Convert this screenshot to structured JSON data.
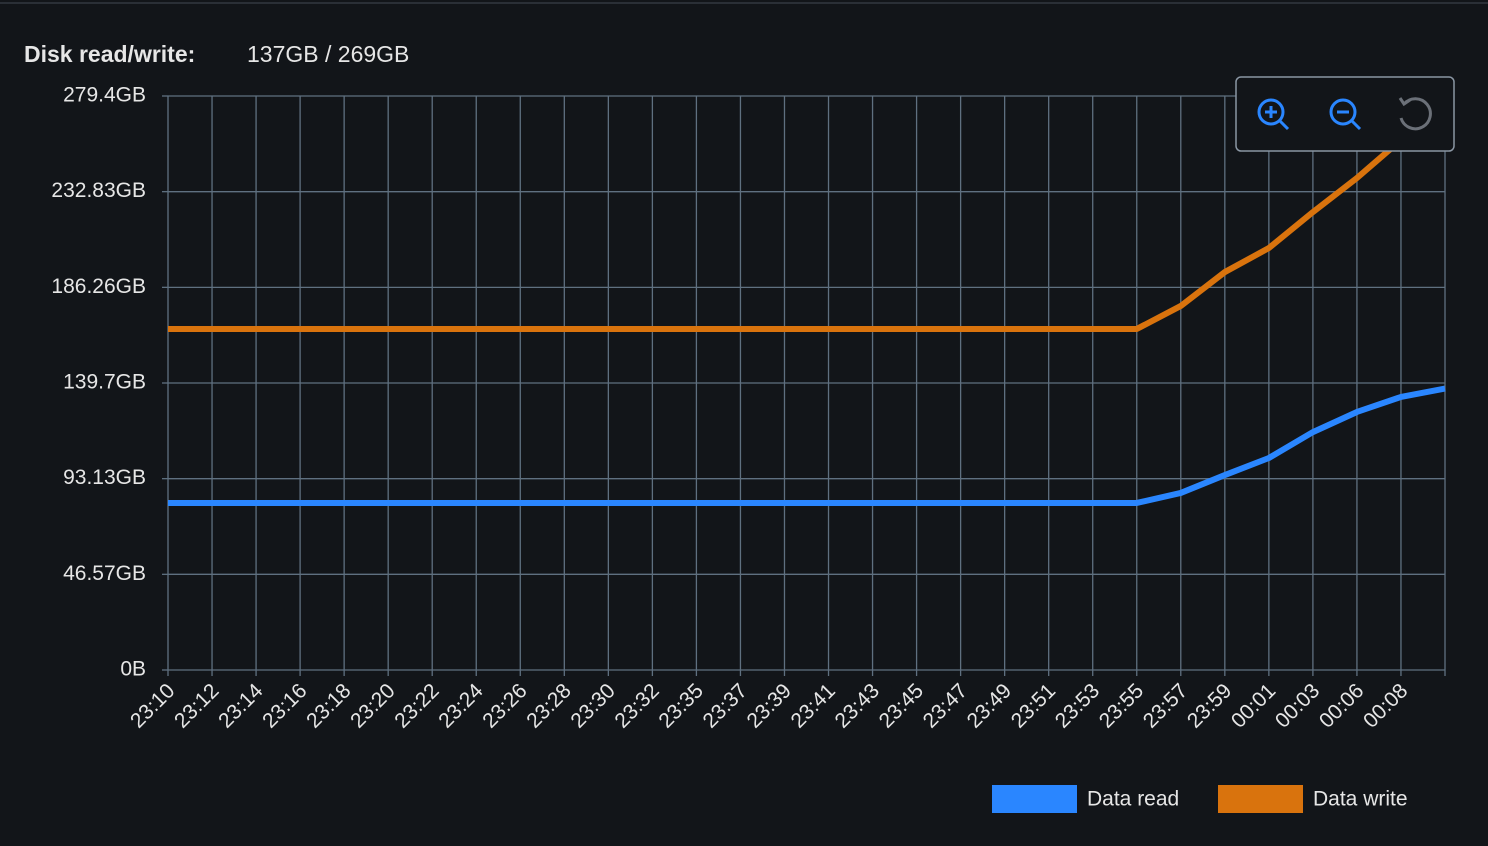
{
  "chart_data": {
    "type": "line",
    "title": "Disk read/write:",
    "subtitle": "137GB / 269GB",
    "categories": [
      "23:10",
      "23:12",
      "23:14",
      "23:16",
      "23:18",
      "23:20",
      "23:22",
      "23:24",
      "23:26",
      "23:28",
      "23:30",
      "23:32",
      "23:35",
      "23:37",
      "23:39",
      "23:41",
      "23:43",
      "23:45",
      "23:47",
      "23:49",
      "23:51",
      "23:53",
      "23:55",
      "23:57",
      "23:59",
      "00:01",
      "00:03",
      "00:06",
      "00:08",
      null
    ],
    "series": [
      {
        "name": "Data read",
        "color": "#2a86ff",
        "values": [
          81.3,
          81.3,
          81.3,
          81.3,
          81.3,
          81.3,
          81.3,
          81.3,
          81.3,
          81.3,
          81.3,
          81.3,
          81.3,
          81.3,
          81.3,
          81.3,
          81.3,
          81.3,
          81.3,
          81.3,
          81.3,
          81.3,
          81.3,
          86.2,
          94.9,
          103.2,
          115.8,
          125.6,
          132.9,
          137
        ]
      },
      {
        "name": "Data write",
        "color": "#d9730d",
        "values": [
          166,
          166,
          166,
          166,
          166,
          166,
          166,
          166,
          166,
          166,
          166,
          166,
          166,
          166,
          166,
          166,
          166,
          166,
          166,
          166,
          166,
          166,
          166,
          177.2,
          193.7,
          205.4,
          222.9,
          239.5,
          258,
          269
        ]
      }
    ],
    "ylim": [
      0,
      279.4
    ],
    "yticks": [
      {
        "value": 0,
        "label": "0B"
      },
      {
        "value": 46.57,
        "label": "46.57GB"
      },
      {
        "value": 93.13,
        "label": "93.13GB"
      },
      {
        "value": 139.7,
        "label": "139.7GB"
      },
      {
        "value": 186.26,
        "label": "186.26GB"
      },
      {
        "value": 232.83,
        "label": "232.83GB"
      },
      {
        "value": 279.4,
        "label": "279.4GB"
      }
    ],
    "grid": true
  }
}
